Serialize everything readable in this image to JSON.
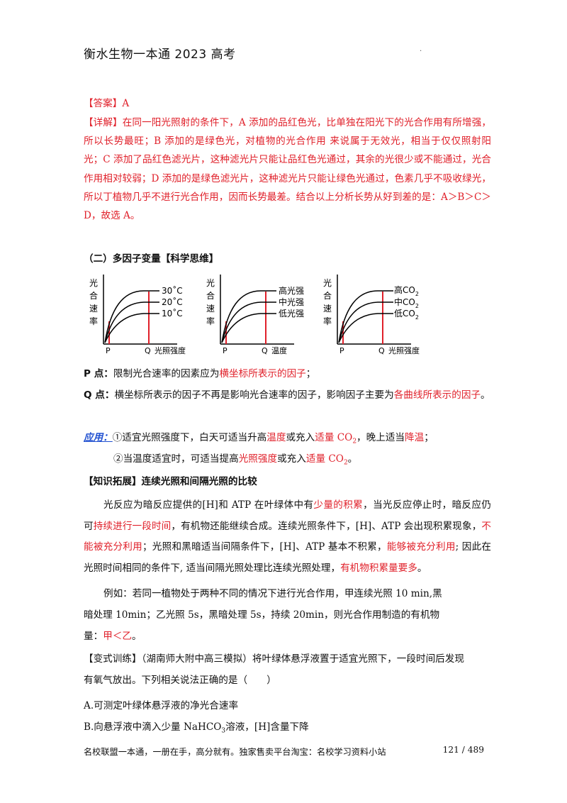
{
  "header": {
    "title": "衡水生物一本通 2023 高考",
    "dot": "."
  },
  "answer": {
    "label": "【答案】",
    "value": "A"
  },
  "explain": {
    "label": "【详解】",
    "text": "在同一阳光照射的条件下，A 添加的品红色光，比单独在阳光下的光合作用有所增强，所以长势最旺；B 添加的是绿色光，对植物的光合作用 来说属于无效光，相当于仅仅照射阳光；C 添加了品红色滤光片，这种滤光片只能让品红色光通过，其余的光很少或不能通过，光合作用相对较弱；D 添加的是绿色滤光片，这种滤光片只能让绿色光通过，色素几乎不吸收绿光，所以丁植物几乎不进行光合作用，因而长势最差。结合以上分析长势从好到差的是：A＞B＞C＞D，故选 A。"
  },
  "section2": {
    "title": "（二）多因子变量【科学思维】"
  },
  "graphs": [
    {
      "ylabel": [
        "光",
        "合",
        "速",
        "率"
      ],
      "curves": [
        "30˚C",
        "20˚C",
        "10˚C"
      ],
      "p": "P",
      "q": "Q",
      "xlabel": "光照强度"
    },
    {
      "ylabel": [
        "光",
        "合",
        "速",
        "率"
      ],
      "curves": [
        "高光强",
        "中光强",
        "低光强"
      ],
      "p": "P",
      "q": "Q",
      "xlabel": "温度"
    },
    {
      "ylabel": [
        "光",
        "合",
        "速",
        "率"
      ],
      "curves": [
        "高CO",
        "中CO",
        "低CO"
      ],
      "sub": "2",
      "p": "P",
      "q": "Q",
      "xlabel": "光照强度"
    }
  ],
  "p_point": {
    "label": "P 点：",
    "t1": "限制光合速率的因素应为",
    "t2": "横坐标所表示的因子",
    "t3": "；"
  },
  "q_point": {
    "label": "Q 点：",
    "t1": "横坐标所表示的因子不再是影响光合速率的因子，影响因子主要为",
    "t2": "各曲线所表示的因",
    "t3": "子",
    "t4": "。"
  },
  "application": {
    "label": "应用：",
    "l1": [
      "①适宜光照强度下，白天可适当升高",
      "温度",
      "或充入",
      "适量 CO",
      "2",
      "，晚上适当",
      "降温",
      "；"
    ],
    "l2": [
      "②当温度适宜时，可适当提高",
      "光照强度",
      "或充入",
      "适量 CO",
      "2",
      "。"
    ]
  },
  "knowledge": {
    "title": "【知识拓展】连续光照和间隔光照的比较",
    "p1": [
      "光反应为暗反应提供的[H]和 ATP 在叶绿体中有",
      "少量的积累",
      "，当光反应停止时，暗反应仍可",
      "持续进行一段时间",
      "，有机物还能继续合成。连续光照条件下，[H]、ATP 会出现积累现象，",
      "不能被充分利用",
      "；光照和黑暗适当间隔条件下，[H]、ATP 基本不积累，",
      "能够被充分利",
      "用",
      "; 因此在光照时间相同的条件下, 适当间隔光照处理比连续光照处理，",
      "有机物积累量要多",
      "。"
    ],
    "ex1": "例如：若同一植物处于两种不同的情况下进行光合作用，甲连续光照 10 min,黑",
    "ex2": "暗处理 10min；乙光照 5s，黑暗处理 5s，持续 20min，则光合作用制造的有机物",
    "ex3a": "量：",
    "ex3b": "甲＜乙",
    "ex3c": "。"
  },
  "variant": {
    "l1": "【变式训练】（湖南师大附中高三模拟）将叶绿体悬浮液置于适宜光照下，一段时间后发现",
    "l2": "有氧气放出。下列相关说法正确的是（　　）",
    "a": "A.可测定叶绿体悬浮液的净光合速率",
    "b1": "B.向悬浮液中滴入少量 NaHCO",
    "b_sub": "3",
    "b2": "溶液，[H]含量下降"
  },
  "footer": {
    "text": "名校联盟一本通，一册在手，高分就有。独家售卖平台淘宝：名校学习资料小站",
    "page": "121 / 489"
  }
}
